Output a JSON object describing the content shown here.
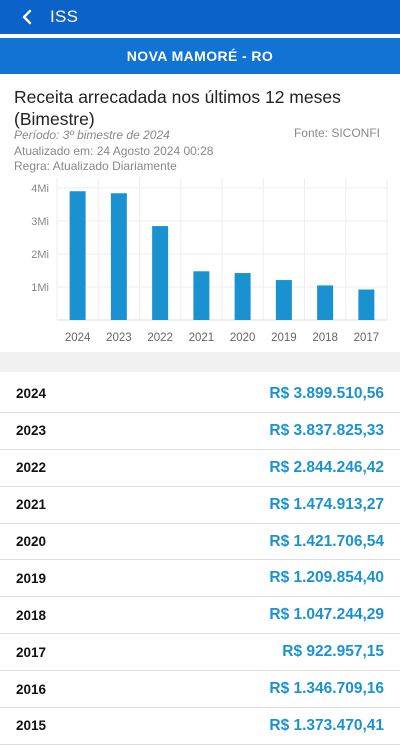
{
  "header": {
    "title": "ISS"
  },
  "subheader": {
    "location": "NOVA MAMORÉ - RO"
  },
  "card": {
    "title": "Receita arrecadada nos últimos 12 meses (Bimestre)",
    "period": "Período: 3º bimestre de 2024",
    "updated": "Atualizado em: 24 Agosto 2024 00:28",
    "rule": "Regra: Atualizado Diariamente",
    "source": "Fonte: SICONFI"
  },
  "chart_data": {
    "type": "bar",
    "categories": [
      "2024",
      "2023",
      "2022",
      "2021",
      "2020",
      "2019",
      "2018",
      "2017"
    ],
    "values": [
      3899510.56,
      3837825.33,
      2844246.42,
      1474913.27,
      1421706.54,
      1209854.4,
      1047244.29,
      922957.15
    ],
    "y_ticks": [
      {
        "value": 4000000,
        "label": "4Mi"
      },
      {
        "value": 3000000,
        "label": "3Mi"
      },
      {
        "value": 2000000,
        "label": "2Mi"
      },
      {
        "value": 1000000,
        "label": "1Mi"
      }
    ],
    "ylim": [
      0,
      4300000
    ],
    "grid": true,
    "bar_color": "#1a92d2"
  },
  "revenues": [
    {
      "year": "2024",
      "value": "R$ 3.899.510,56"
    },
    {
      "year": "2023",
      "value": "R$ 3.837.825,33"
    },
    {
      "year": "2022",
      "value": "R$ 2.844.246,42"
    },
    {
      "year": "2021",
      "value": "R$ 1.474.913,27"
    },
    {
      "year": "2020",
      "value": "R$ 1.421.706,54"
    },
    {
      "year": "2019",
      "value": "R$ 1.209.854,40"
    },
    {
      "year": "2018",
      "value": "R$ 1.047.244,29"
    },
    {
      "year": "2017",
      "value": "R$ 922.957,15"
    },
    {
      "year": "2016",
      "value": "R$ 1.346.709,16"
    },
    {
      "year": "2015",
      "value": "R$ 1.373.470,41"
    }
  ]
}
